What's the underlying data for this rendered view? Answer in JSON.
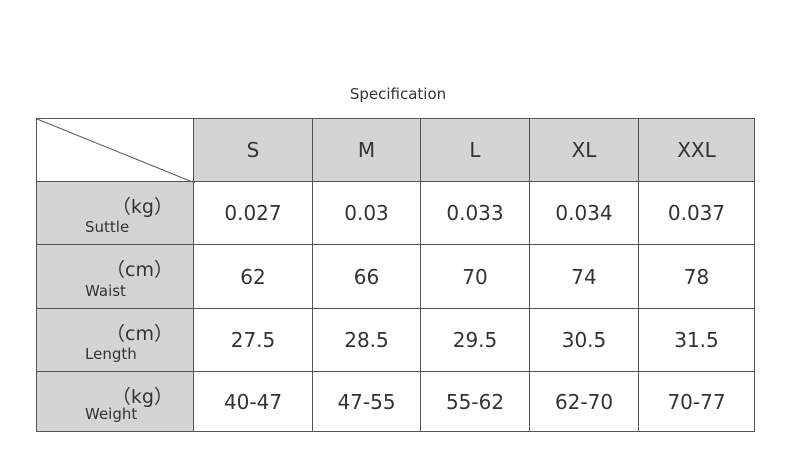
{
  "title": "Specification",
  "table": {
    "columns": [
      "S",
      "M",
      "L",
      "XL",
      "XXL"
    ],
    "rows": [
      {
        "unit": "（kg）",
        "label": "Suttle",
        "values": [
          "0.027",
          "0.03",
          "0.033",
          "0.034",
          "0.037"
        ]
      },
      {
        "unit": "（cm）",
        "label": "Waist",
        "values": [
          "62",
          "66",
          "70",
          "74",
          "78"
        ]
      },
      {
        "unit": "（cm）",
        "label": "Length",
        "values": [
          "27.5",
          "28.5",
          "29.5",
          "30.5",
          "31.5"
        ]
      },
      {
        "unit": "（kg）",
        "label": "Weight",
        "values": [
          "40-47",
          "47-55",
          "55-62",
          "62-70",
          "70-77"
        ]
      }
    ]
  }
}
